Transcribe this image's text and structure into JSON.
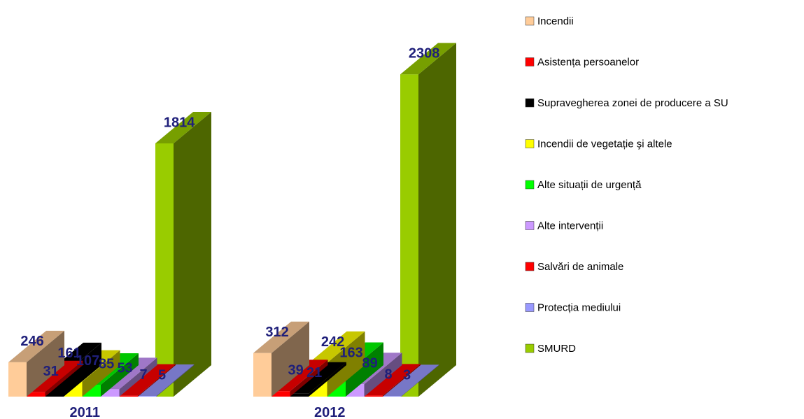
{
  "chart_data": {
    "type": "bar",
    "categories": [
      "2011",
      "2012"
    ],
    "series": [
      {
        "name": "Incendii",
        "color": "#FFCC99",
        "values": [
          246,
          312
        ]
      },
      {
        "name": "Asistența persoanelor",
        "color": "#FF0000",
        "values": [
          31,
          39
        ]
      },
      {
        "name": "Supravegherea zonei de producere a SU",
        "color": "#000000",
        "values": [
          161,
          21
        ]
      },
      {
        "name": "Incendii de vegetație şi altele",
        "color": "#FFFF00",
        "values": [
          107,
          242
        ]
      },
      {
        "name": "Alte situații de urgență",
        "color": "#00FF00",
        "values": [
          85,
          163
        ]
      },
      {
        "name": "Alte intervenții",
        "color": "#CC99FF",
        "values": [
          53,
          89
        ]
      },
      {
        "name": "Salvări de animale",
        "color": "#FF0000",
        "values": [
          7,
          8
        ]
      },
      {
        "name": "Protecția mediului",
        "color": "#9999FF",
        "values": [
          5,
          3
        ]
      },
      {
        "name": "SMURD",
        "color": "#99CC00",
        "values": [
          1814,
          2308
        ]
      }
    ],
    "grid": false,
    "legend_position": "right",
    "title": "",
    "xlabel": "",
    "ylabel": ""
  }
}
